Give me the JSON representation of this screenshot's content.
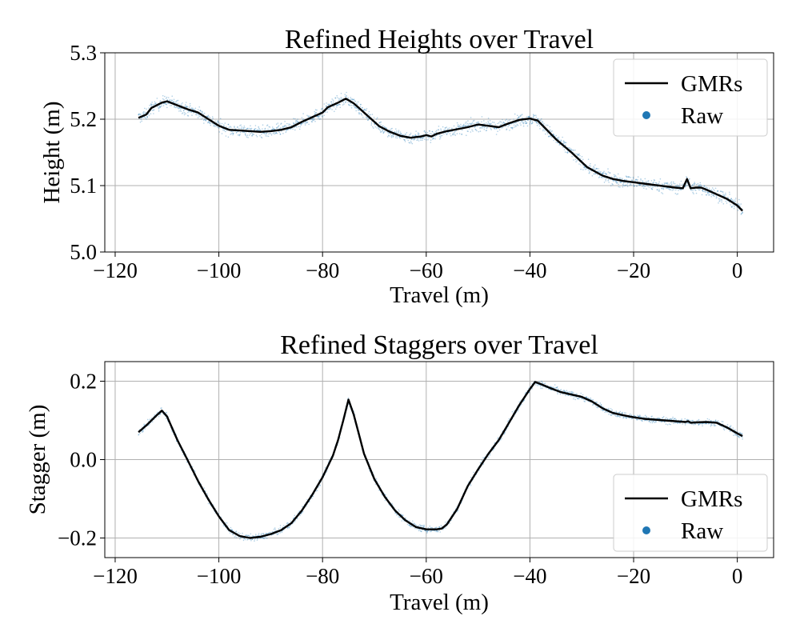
{
  "colors": {
    "gmr_line": "#000000",
    "raw_points": "#1f77b4",
    "grid": "#b0b0b0",
    "axes": "#000000",
    "background": "#ffffff"
  },
  "chart_data": [
    {
      "type": "line",
      "title": "Refined Heights over Travel",
      "xlabel": "Travel (m)",
      "ylabel": "Height (m)",
      "xlim": [
        -122,
        7
      ],
      "ylim": [
        5.0,
        5.3
      ],
      "xticks": [
        -120,
        -100,
        -80,
        -60,
        -40,
        -20,
        0
      ],
      "xtick_labels": [
        "−120",
        "−100",
        "−80",
        "−60",
        "−40",
        "−20",
        "0"
      ],
      "yticks": [
        5.0,
        5.1,
        5.2,
        5.3
      ],
      "ytick_labels": [
        "5.0",
        "5.1",
        "5.2",
        "5.3"
      ],
      "grid": true,
      "legend": {
        "location": "top-right",
        "entries": [
          "GMRs",
          "Raw"
        ]
      },
      "series": [
        {
          "name": "GMRs",
          "style": "line",
          "x": [
            -115.5,
            -114,
            -113,
            -111,
            -110,
            -108,
            -106,
            -104,
            -102,
            -100,
            -98,
            -96,
            -94,
            -92,
            -90,
            -88,
            -86,
            -84,
            -82,
            -80,
            -79,
            -77,
            -75.5,
            -74,
            -73,
            -71,
            -69,
            -67,
            -65,
            -63,
            -61,
            -60,
            -59,
            -58,
            -56,
            -54,
            -52,
            -50,
            -48,
            -46,
            -44,
            -42,
            -40,
            -38.5,
            -37,
            -35,
            -32,
            -29,
            -26,
            -24,
            -22,
            -20,
            -18,
            -16,
            -14,
            -12,
            -10.5,
            -9.7,
            -9,
            -8,
            -7,
            -6,
            -4,
            -2,
            0,
            1
          ],
          "y": [
            5.202,
            5.207,
            5.217,
            5.225,
            5.227,
            5.221,
            5.215,
            5.21,
            5.2,
            5.19,
            5.184,
            5.183,
            5.182,
            5.181,
            5.182,
            5.184,
            5.188,
            5.196,
            5.203,
            5.21,
            5.218,
            5.225,
            5.231,
            5.224,
            5.217,
            5.203,
            5.189,
            5.181,
            5.175,
            5.172,
            5.174,
            5.176,
            5.174,
            5.178,
            5.182,
            5.185,
            5.188,
            5.192,
            5.19,
            5.188,
            5.194,
            5.199,
            5.201,
            5.198,
            5.186,
            5.17,
            5.15,
            5.128,
            5.115,
            5.11,
            5.107,
            5.105,
            5.103,
            5.101,
            5.099,
            5.097,
            5.096,
            5.11,
            5.096,
            5.097,
            5.097,
            5.094,
            5.087,
            5.08,
            5.07,
            5.062
          ]
        },
        {
          "name": "Raw",
          "style": "scatter"
        }
      ]
    },
    {
      "type": "line",
      "title": "Refined Staggers over Travel",
      "xlabel": "Travel (m)",
      "ylabel": "Stagger (m)",
      "xlim": [
        -122,
        7
      ],
      "ylim": [
        -0.25,
        0.25
      ],
      "xticks": [
        -120,
        -100,
        -80,
        -60,
        -40,
        -20,
        0
      ],
      "xtick_labels": [
        "−120",
        "−100",
        "−80",
        "−60",
        "−40",
        "−20",
        "0"
      ],
      "yticks": [
        -0.2,
        0.0,
        0.2
      ],
      "ytick_labels": [
        "−0.2",
        "0.0",
        "0.2"
      ],
      "grid": true,
      "legend": {
        "location": "bottom-right",
        "entries": [
          "GMRs",
          "Raw"
        ]
      },
      "series": [
        {
          "name": "GMRs",
          "style": "line",
          "x": [
            -115.5,
            -114,
            -112,
            -111,
            -110,
            -108,
            -106,
            -104,
            -102,
            -100,
            -98,
            -96,
            -94,
            -92,
            -90,
            -88,
            -86,
            -84,
            -82,
            -80,
            -78,
            -77,
            -76,
            -75,
            -74,
            -73,
            -72,
            -70,
            -68,
            -66,
            -64,
            -62,
            -60,
            -58,
            -57,
            -56,
            -54,
            -52,
            -50,
            -48,
            -46,
            -44,
            -42,
            -40,
            -39,
            -38,
            -36,
            -34,
            -32,
            -30,
            -28,
            -26,
            -24,
            -22,
            -20,
            -18,
            -16,
            -14,
            -12,
            -10,
            -9.5,
            -9,
            -8,
            -6,
            -4,
            -2,
            0,
            1
          ],
          "y": [
            0.07,
            0.087,
            0.113,
            0.125,
            0.11,
            0.05,
            -0.002,
            -0.055,
            -0.102,
            -0.145,
            -0.18,
            -0.195,
            -0.2,
            -0.197,
            -0.19,
            -0.18,
            -0.162,
            -0.13,
            -0.09,
            -0.045,
            0.01,
            0.05,
            0.1,
            0.153,
            0.115,
            0.065,
            0.015,
            -0.05,
            -0.095,
            -0.13,
            -0.155,
            -0.172,
            -0.178,
            -0.178,
            -0.176,
            -0.165,
            -0.125,
            -0.068,
            -0.025,
            0.015,
            0.05,
            0.095,
            0.14,
            0.18,
            0.198,
            0.193,
            0.182,
            0.172,
            0.166,
            0.16,
            0.148,
            0.131,
            0.119,
            0.113,
            0.108,
            0.104,
            0.102,
            0.1,
            0.098,
            0.096,
            0.098,
            0.094,
            0.095,
            0.096,
            0.094,
            0.082,
            0.067,
            0.06
          ]
        },
        {
          "name": "Raw",
          "style": "scatter"
        }
      ]
    }
  ]
}
